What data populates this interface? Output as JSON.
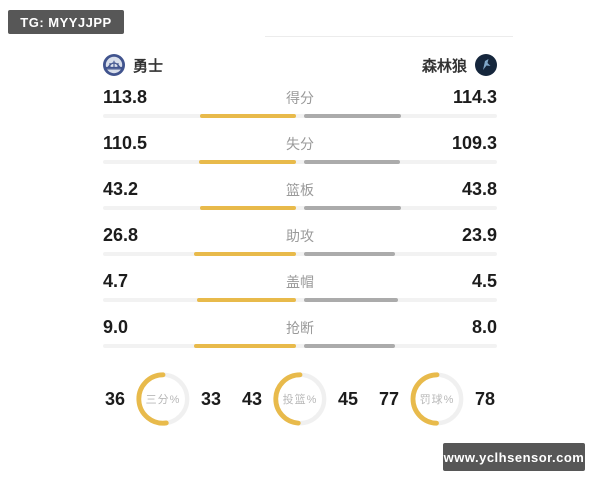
{
  "badge": {
    "text": "TG: MYYJJPP"
  },
  "watermark": {
    "text": "www.yclhsensor.com"
  },
  "teams": {
    "home": {
      "name": "勇士"
    },
    "away": {
      "name": "森林狼"
    }
  },
  "colors": {
    "home_fill": "#e8ba4b",
    "away_fill": "#ababab",
    "track": "#f2f2f2",
    "gauge_track": "#f0f0f0",
    "badge_bg": "#575757"
  },
  "stats": [
    {
      "label": "得分",
      "home": "113.8",
      "away": "114.3"
    },
    {
      "label": "失分",
      "home": "110.5",
      "away": "109.3"
    },
    {
      "label": "篮板",
      "home": "43.2",
      "away": "43.8"
    },
    {
      "label": "助攻",
      "home": "26.8",
      "away": "23.9"
    },
    {
      "label": "盖帽",
      "home": "4.7",
      "away": "4.5"
    },
    {
      "label": "抢断",
      "home": "9.0",
      "away": "8.0"
    }
  ],
  "gauges": [
    {
      "label": "三分%",
      "home": "36",
      "away": "33"
    },
    {
      "label": "投篮%",
      "home": "43",
      "away": "45"
    },
    {
      "label": "罚球%",
      "home": "77",
      "away": "78"
    }
  ]
}
